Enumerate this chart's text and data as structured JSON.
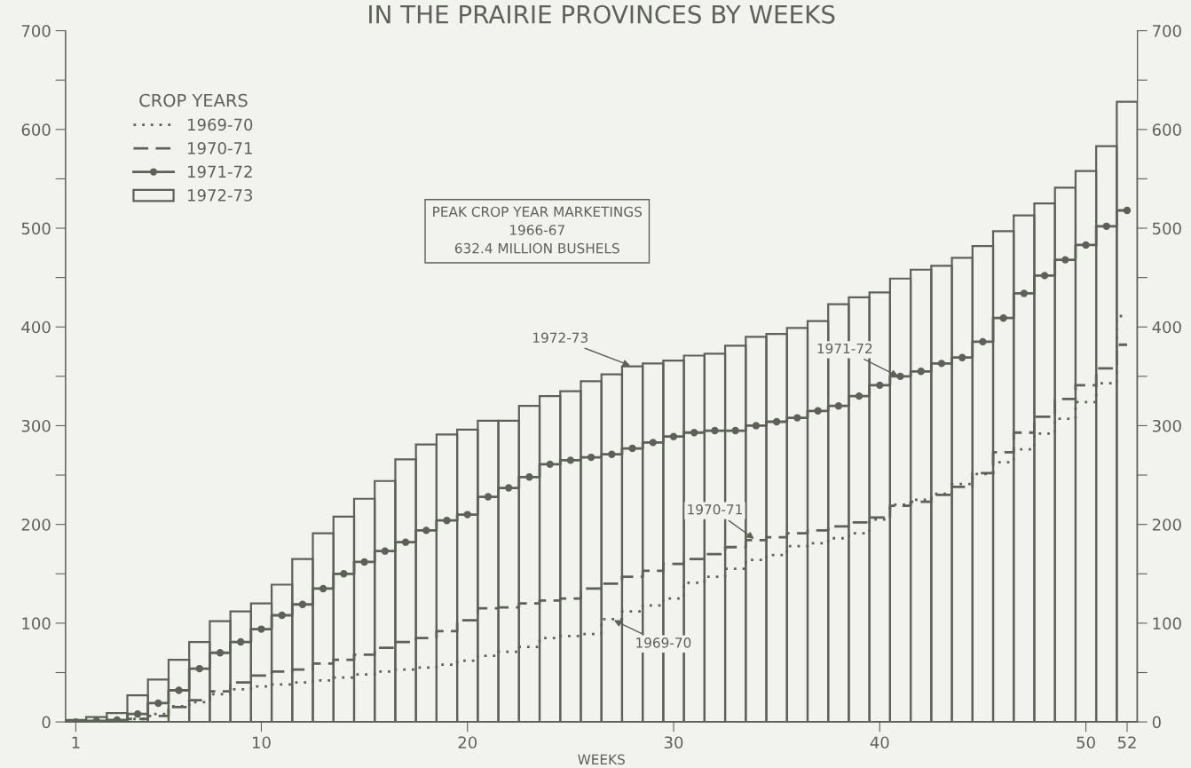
{
  "chart_data": {
    "type": "step",
    "title": "IN THE PRAIRIE PROVINCES BY WEEKS",
    "xlabel": "WEEKS",
    "legend_title": "CROP YEARS",
    "legend": "top left",
    "x": [
      1,
      2,
      3,
      4,
      5,
      6,
      7,
      8,
      9,
      10,
      11,
      12,
      13,
      14,
      15,
      16,
      17,
      18,
      19,
      20,
      21,
      22,
      23,
      24,
      25,
      26,
      27,
      28,
      29,
      30,
      31,
      32,
      33,
      34,
      35,
      36,
      37,
      38,
      39,
      40,
      41,
      42,
      43,
      44,
      45,
      46,
      47,
      48,
      49,
      50,
      51,
      52
    ],
    "xlim": [
      0.5,
      52.5
    ],
    "xticks": [
      1,
      10,
      20,
      30,
      40,
      50,
      52
    ],
    "ylim": [
      0,
      700
    ],
    "yticks": [
      0,
      {
        "value": 50,
        "label": null
      },
      100,
      {
        "value": 150,
        "label": null
      },
      200,
      {
        "value": 250,
        "label": null
      },
      300,
      {
        "value": 350,
        "label": null
      },
      400,
      {
        "value": 450,
        "label": null
      },
      500,
      {
        "value": 550,
        "label": null
      },
      600,
      {
        "value": 650,
        "label": null
      },
      700
    ],
    "y2lim": [
      0,
      700
    ],
    "y2ticks": [
      0,
      {
        "value": 50,
        "label": null
      },
      100,
      {
        "value": 150,
        "label": null
      },
      200,
      {
        "value": 250,
        "label": null
      },
      300,
      {
        "value": 350,
        "label": null
      },
      400,
      {
        "value": 450,
        "label": null
      },
      500,
      {
        "value": 550,
        "label": null
      },
      600,
      {
        "value": 650,
        "label": null
      },
      700
    ],
    "series": [
      {
        "name": "1969-70",
        "line_style": "dotted",
        "color": "#5d6158",
        "values": [
          0,
          0,
          0,
          3,
          8,
          16,
          20,
          28,
          33,
          36,
          38,
          40,
          42,
          45,
          48,
          51,
          53,
          55,
          58,
          62,
          67,
          71,
          76,
          85,
          87,
          89,
          104,
          112,
          118,
          125,
          141,
          147,
          155,
          164,
          169,
          178,
          181,
          186,
          191,
          205,
          220,
          225,
          231,
          241,
          251,
          263,
          276,
          292,
          307,
          324,
          343,
          411
        ]
      },
      {
        "name": "1970-71",
        "line_style": "dashed",
        "color": "#5d6158",
        "values": [
          0,
          0,
          1,
          3,
          6,
          15,
          22,
          31,
          40,
          47,
          51,
          53,
          59,
          63,
          68,
          75,
          81,
          85,
          92,
          103,
          115,
          116,
          120,
          123,
          125,
          135,
          140,
          147,
          153,
          160,
          165,
          170,
          177,
          184,
          187,
          191,
          194,
          198,
          202,
          207,
          219,
          223,
          230,
          238,
          252,
          273,
          293,
          309,
          327,
          341,
          358,
          382
        ]
      },
      {
        "name": "1971-72",
        "line_style": "solid",
        "marker": "circle",
        "color": "#5d6158",
        "values": [
          0,
          1,
          2,
          8,
          19,
          32,
          54,
          70,
          81,
          94,
          108,
          119,
          135,
          150,
          162,
          173,
          182,
          194,
          204,
          210,
          228,
          237,
          248,
          261,
          265,
          268,
          271,
          277,
          283,
          289,
          293,
          295,
          295,
          300,
          304,
          308,
          315,
          320,
          330,
          341,
          350,
          355,
          363,
          369,
          385,
          409,
          434,
          452,
          468,
          483,
          502,
          518
        ]
      },
      {
        "name": "1972-73",
        "type": "bar",
        "color": "#5d6158",
        "values": [
          2,
          5,
          9,
          27,
          43,
          63,
          81,
          102,
          112,
          120,
          139,
          165,
          191,
          208,
          226,
          244,
          266,
          281,
          291,
          296,
          305,
          305,
          320,
          330,
          335,
          345,
          352,
          360,
          363,
          366,
          371,
          373,
          381,
          390,
          393,
          399,
          406,
          423,
          430,
          435,
          449,
          458,
          462,
          470,
          482,
          497,
          513,
          525,
          541,
          558,
          583,
          628
        ]
      }
    ],
    "annotations": [
      "PEAK CROP YEAR MARKETINGS\n1966-67\n632.4 MILLION BUSHELS",
      {
        "text": "1972-73",
        "x": 28,
        "y": 360
      },
      {
        "text": "1971-72",
        "x": 41,
        "y": 349
      },
      {
        "text": "1970-71",
        "x": 34,
        "y": 184
      },
      {
        "text": "1969-70",
        "x": 27,
        "y": 104
      }
    ]
  }
}
